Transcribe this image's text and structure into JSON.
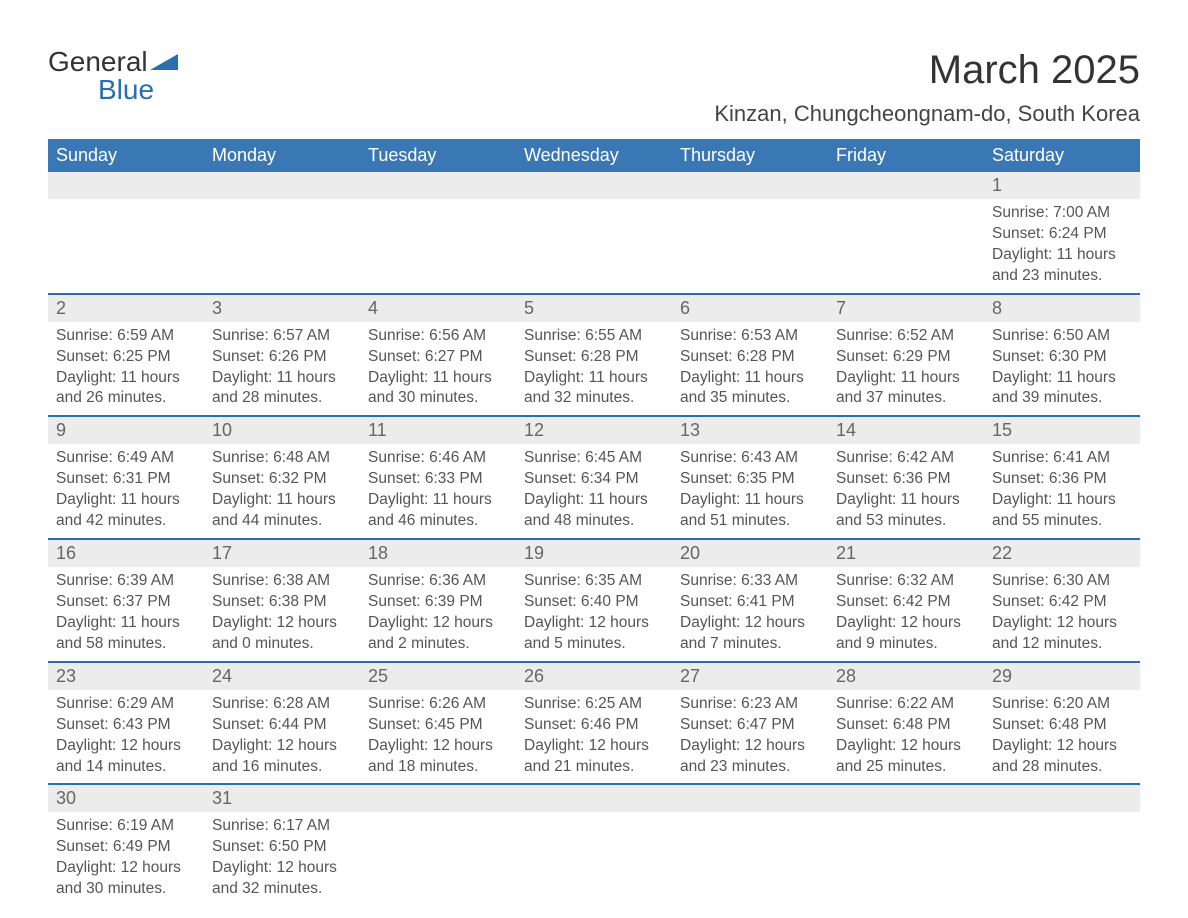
{
  "logo": {
    "text_top": "General",
    "text_bottom": "Blue",
    "shape_color": "#2a6db0",
    "top_color": "#333333"
  },
  "title": "March 2025",
  "location": "Kinzan, Chungcheongnam-do, South Korea",
  "colors": {
    "header_bg": "#3a78b5",
    "header_text": "#ffffff",
    "daynum_bg": "#ececec",
    "row_border_color": "#2a6db0",
    "body_text": "#555555",
    "background": "#ffffff"
  },
  "day_headers": [
    "Sunday",
    "Monday",
    "Tuesday",
    "Wednesday",
    "Thursday",
    "Friday",
    "Saturday"
  ],
  "weeks": [
    [
      null,
      null,
      null,
      null,
      null,
      null,
      {
        "n": "1",
        "sunrise": "Sunrise: 7:00 AM",
        "sunset": "Sunset: 6:24 PM",
        "daylight1": "Daylight: 11 hours",
        "daylight2": "and 23 minutes."
      }
    ],
    [
      {
        "n": "2",
        "sunrise": "Sunrise: 6:59 AM",
        "sunset": "Sunset: 6:25 PM",
        "daylight1": "Daylight: 11 hours",
        "daylight2": "and 26 minutes."
      },
      {
        "n": "3",
        "sunrise": "Sunrise: 6:57 AM",
        "sunset": "Sunset: 6:26 PM",
        "daylight1": "Daylight: 11 hours",
        "daylight2": "and 28 minutes."
      },
      {
        "n": "4",
        "sunrise": "Sunrise: 6:56 AM",
        "sunset": "Sunset: 6:27 PM",
        "daylight1": "Daylight: 11 hours",
        "daylight2": "and 30 minutes."
      },
      {
        "n": "5",
        "sunrise": "Sunrise: 6:55 AM",
        "sunset": "Sunset: 6:28 PM",
        "daylight1": "Daylight: 11 hours",
        "daylight2": "and 32 minutes."
      },
      {
        "n": "6",
        "sunrise": "Sunrise: 6:53 AM",
        "sunset": "Sunset: 6:28 PM",
        "daylight1": "Daylight: 11 hours",
        "daylight2": "and 35 minutes."
      },
      {
        "n": "7",
        "sunrise": "Sunrise: 6:52 AM",
        "sunset": "Sunset: 6:29 PM",
        "daylight1": "Daylight: 11 hours",
        "daylight2": "and 37 minutes."
      },
      {
        "n": "8",
        "sunrise": "Sunrise: 6:50 AM",
        "sunset": "Sunset: 6:30 PM",
        "daylight1": "Daylight: 11 hours",
        "daylight2": "and 39 minutes."
      }
    ],
    [
      {
        "n": "9",
        "sunrise": "Sunrise: 6:49 AM",
        "sunset": "Sunset: 6:31 PM",
        "daylight1": "Daylight: 11 hours",
        "daylight2": "and 42 minutes."
      },
      {
        "n": "10",
        "sunrise": "Sunrise: 6:48 AM",
        "sunset": "Sunset: 6:32 PM",
        "daylight1": "Daylight: 11 hours",
        "daylight2": "and 44 minutes."
      },
      {
        "n": "11",
        "sunrise": "Sunrise: 6:46 AM",
        "sunset": "Sunset: 6:33 PM",
        "daylight1": "Daylight: 11 hours",
        "daylight2": "and 46 minutes."
      },
      {
        "n": "12",
        "sunrise": "Sunrise: 6:45 AM",
        "sunset": "Sunset: 6:34 PM",
        "daylight1": "Daylight: 11 hours",
        "daylight2": "and 48 minutes."
      },
      {
        "n": "13",
        "sunrise": "Sunrise: 6:43 AM",
        "sunset": "Sunset: 6:35 PM",
        "daylight1": "Daylight: 11 hours",
        "daylight2": "and 51 minutes."
      },
      {
        "n": "14",
        "sunrise": "Sunrise: 6:42 AM",
        "sunset": "Sunset: 6:36 PM",
        "daylight1": "Daylight: 11 hours",
        "daylight2": "and 53 minutes."
      },
      {
        "n": "15",
        "sunrise": "Sunrise: 6:41 AM",
        "sunset": "Sunset: 6:36 PM",
        "daylight1": "Daylight: 11 hours",
        "daylight2": "and 55 minutes."
      }
    ],
    [
      {
        "n": "16",
        "sunrise": "Sunrise: 6:39 AM",
        "sunset": "Sunset: 6:37 PM",
        "daylight1": "Daylight: 11 hours",
        "daylight2": "and 58 minutes."
      },
      {
        "n": "17",
        "sunrise": "Sunrise: 6:38 AM",
        "sunset": "Sunset: 6:38 PM",
        "daylight1": "Daylight: 12 hours",
        "daylight2": "and 0 minutes."
      },
      {
        "n": "18",
        "sunrise": "Sunrise: 6:36 AM",
        "sunset": "Sunset: 6:39 PM",
        "daylight1": "Daylight: 12 hours",
        "daylight2": "and 2 minutes."
      },
      {
        "n": "19",
        "sunrise": "Sunrise: 6:35 AM",
        "sunset": "Sunset: 6:40 PM",
        "daylight1": "Daylight: 12 hours",
        "daylight2": "and 5 minutes."
      },
      {
        "n": "20",
        "sunrise": "Sunrise: 6:33 AM",
        "sunset": "Sunset: 6:41 PM",
        "daylight1": "Daylight: 12 hours",
        "daylight2": "and 7 minutes."
      },
      {
        "n": "21",
        "sunrise": "Sunrise: 6:32 AM",
        "sunset": "Sunset: 6:42 PM",
        "daylight1": "Daylight: 12 hours",
        "daylight2": "and 9 minutes."
      },
      {
        "n": "22",
        "sunrise": "Sunrise: 6:30 AM",
        "sunset": "Sunset: 6:42 PM",
        "daylight1": "Daylight: 12 hours",
        "daylight2": "and 12 minutes."
      }
    ],
    [
      {
        "n": "23",
        "sunrise": "Sunrise: 6:29 AM",
        "sunset": "Sunset: 6:43 PM",
        "daylight1": "Daylight: 12 hours",
        "daylight2": "and 14 minutes."
      },
      {
        "n": "24",
        "sunrise": "Sunrise: 6:28 AM",
        "sunset": "Sunset: 6:44 PM",
        "daylight1": "Daylight: 12 hours",
        "daylight2": "and 16 minutes."
      },
      {
        "n": "25",
        "sunrise": "Sunrise: 6:26 AM",
        "sunset": "Sunset: 6:45 PM",
        "daylight1": "Daylight: 12 hours",
        "daylight2": "and 18 minutes."
      },
      {
        "n": "26",
        "sunrise": "Sunrise: 6:25 AM",
        "sunset": "Sunset: 6:46 PM",
        "daylight1": "Daylight: 12 hours",
        "daylight2": "and 21 minutes."
      },
      {
        "n": "27",
        "sunrise": "Sunrise: 6:23 AM",
        "sunset": "Sunset: 6:47 PM",
        "daylight1": "Daylight: 12 hours",
        "daylight2": "and 23 minutes."
      },
      {
        "n": "28",
        "sunrise": "Sunrise: 6:22 AM",
        "sunset": "Sunset: 6:48 PM",
        "daylight1": "Daylight: 12 hours",
        "daylight2": "and 25 minutes."
      },
      {
        "n": "29",
        "sunrise": "Sunrise: 6:20 AM",
        "sunset": "Sunset: 6:48 PM",
        "daylight1": "Daylight: 12 hours",
        "daylight2": "and 28 minutes."
      }
    ],
    [
      {
        "n": "30",
        "sunrise": "Sunrise: 6:19 AM",
        "sunset": "Sunset: 6:49 PM",
        "daylight1": "Daylight: 12 hours",
        "daylight2": "and 30 minutes."
      },
      {
        "n": "31",
        "sunrise": "Sunrise: 6:17 AM",
        "sunset": "Sunset: 6:50 PM",
        "daylight1": "Daylight: 12 hours",
        "daylight2": "and 32 minutes."
      },
      null,
      null,
      null,
      null,
      null
    ]
  ]
}
